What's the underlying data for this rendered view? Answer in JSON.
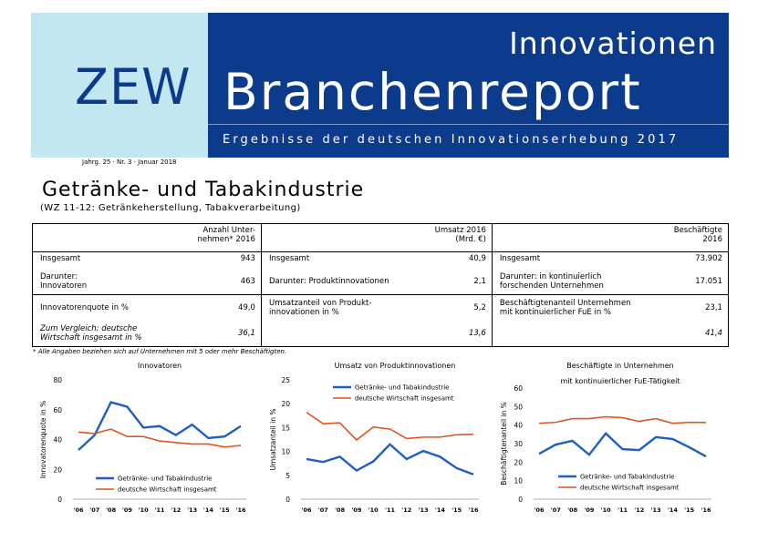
{
  "header": {
    "logo": "ZEW",
    "series": "Innovationen",
    "name": "Branchenreport",
    "subtitle": "Ergebnisse der deutschen Innovationserhebung 2017",
    "colors": {
      "dark_blue": "#0d3b8c",
      "light_blue": "#c3e7f1",
      "orange": "#e0541f",
      "line_blue": "#1f5fbf"
    }
  },
  "issue": "Jahrg. 25 · Nr. 3 · Januar 2018",
  "title": "Getränke- und Tabakindustrie",
  "wz": "(WZ 11-12: Getränkeherstellung, Tabakverarbeitung)",
  "table": {
    "col1_head": [
      "Anzahl Unter-",
      "nehmen* 2016"
    ],
    "col2_head": [
      "Umsatz 2016",
      "(Mrd. €)"
    ],
    "col3_head": [
      "Beschäftigte",
      "2016"
    ],
    "rows1": [
      {
        "l1": "Insgesamt",
        "v1": "943",
        "l2": "Insgesamt",
        "v2": "40,9",
        "l3": "Insgesamt",
        "v3": "73.902"
      },
      {
        "l1": "Darunter: Innovatoren",
        "v1": "463",
        "l2": "Darunter: Produktinnovationen",
        "v2": "2,1",
        "l3": "Darunter: in kontinuierlich forschenden Unternehmen",
        "v3": "17.051"
      }
    ],
    "rows2": [
      {
        "l1": "Innovatorenquote in %",
        "v1": "49,0",
        "l2": "Umsatzanteil von Produkt-innovationen in %",
        "v2": "5,2",
        "l3": "Beschäftigtenanteil Unternehmen mit kontinuierlicher FuE in %",
        "v3": "23,1"
      },
      {
        "l1": "Zum Vergleich: deutsche Wirtschaft insgesamt in %",
        "v1": "36,1",
        "l2": "",
        "v2": "13,6",
        "l3": "",
        "v3": "41,4"
      }
    ]
  },
  "footnote": "* Alle Angaben beziehen sich auf Unternehmen mit 5 oder mehr Beschäftigten.",
  "chart_data": [
    {
      "type": "line",
      "title": "Innovatoren",
      "ylabel": "Innovatorenquote in %",
      "x": [
        "'06",
        "'07",
        "'08",
        "'09",
        "'10",
        "'11",
        "'12",
        "'13",
        "'14",
        "'15",
        "'16"
      ],
      "ylim": [
        0,
        80
      ],
      "yticks": [
        0,
        20,
        40,
        60,
        80
      ],
      "legend": "bottom-left",
      "series": [
        {
          "name": "Getränke- und Tabakindustrie",
          "color": "#1f5fbf",
          "values": [
            33,
            43,
            65,
            62,
            48,
            49,
            43,
            50,
            41,
            42,
            49
          ]
        },
        {
          "name": "deutsche Wirtschaft insgesamt",
          "color": "#e0541f",
          "values": [
            45,
            44,
            47,
            42,
            42,
            39,
            38,
            37,
            37,
            35,
            36
          ]
        }
      ]
    },
    {
      "type": "line",
      "title": "Umsatz von Produktinnovationen",
      "ylabel": "Umsatzanteil in %",
      "x": [
        "'06",
        "'07",
        "'08",
        "'09",
        "'10",
        "'11",
        "'12",
        "'13",
        "'14",
        "'15",
        "'16"
      ],
      "ylim": [
        0,
        25
      ],
      "yticks": [
        0,
        5,
        10,
        15,
        20,
        25
      ],
      "legend": "top-right",
      "series": [
        {
          "name": "Getränke- und Tabakindustrie",
          "color": "#1f5fbf",
          "values": [
            8.4,
            7.8,
            8.9,
            6.0,
            7.9,
            11.5,
            8.4,
            10.1,
            8.9,
            6.5,
            5.2
          ]
        },
        {
          "name": "deutsche Wirtschaft insgesamt",
          "color": "#e0541f",
          "values": [
            18.2,
            15.8,
            16.0,
            12.4,
            15.1,
            14.7,
            12.7,
            13.0,
            13.0,
            13.5,
            13.6
          ]
        }
      ]
    },
    {
      "type": "line",
      "title": "Beschäftigte in Unternehmen mit kontinuierlicher FuE-Tätigkeit",
      "title_lines": [
        "Beschäftigte in Unternehmen",
        "mit kontinuierlicher FuE-Tätigkeit"
      ],
      "ylabel": "Beschäftigtenanteil in %",
      "x": [
        "'06",
        "'07",
        "'08",
        "'09",
        "'10",
        "'11",
        "'12",
        "'13",
        "'14",
        "'15",
        "'16"
      ],
      "ylim": [
        0,
        60
      ],
      "yticks": [
        0,
        10,
        20,
        30,
        40,
        50,
        60
      ],
      "legend": "bottom-right",
      "series": [
        {
          "name": "Getränke- und Tabakindustrie",
          "color": "#1f5fbf",
          "values": [
            24.5,
            29.5,
            31.5,
            24.0,
            35.5,
            27.0,
            26.5,
            33.5,
            32.5,
            28.0,
            23.1
          ]
        },
        {
          "name": "deutsche Wirtschaft insgesamt",
          "color": "#e0541f",
          "values": [
            41.0,
            41.5,
            43.5,
            43.5,
            44.5,
            44.0,
            42.0,
            43.5,
            41.0,
            41.5,
            41.4
          ]
        }
      ]
    }
  ]
}
